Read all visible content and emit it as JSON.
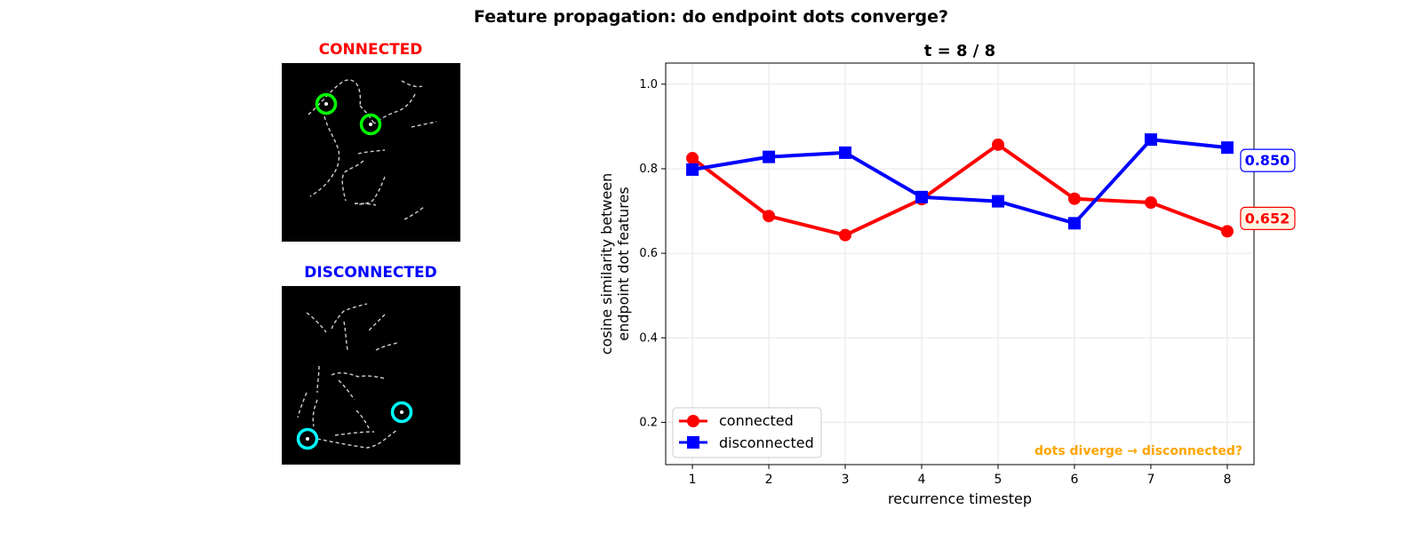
{
  "suptitle": "Feature propagation: do endpoint dots converge?",
  "panels": {
    "connected": {
      "title": "CONNECTED",
      "title_color": "#ff0000",
      "marker_color": "#00ff00"
    },
    "disconnected": {
      "title": "DISCONNECTED",
      "title_color": "#0000ff",
      "marker_color": "#00ffff"
    }
  },
  "chart_data": {
    "type": "line",
    "title": "t = 8 / 8",
    "xlabel": "recurrence timestep",
    "ylabel_lines": [
      "cosine similarity between",
      "endpoint dot features"
    ],
    "x": [
      1,
      2,
      3,
      4,
      5,
      6,
      7,
      8
    ],
    "xlim": [
      0.65,
      8.35
    ],
    "ylim": [
      0.1,
      1.05
    ],
    "xticks": [
      1,
      2,
      3,
      4,
      5,
      6,
      7,
      8
    ],
    "yticks": [
      0.2,
      0.4,
      0.6,
      0.8,
      1.0
    ],
    "ytick_labels": [
      "0.2",
      "0.4",
      "0.6",
      "0.8",
      "1.0"
    ],
    "grid": true,
    "series": [
      {
        "name": "connected",
        "color": "#ff0000",
        "marker": "circle",
        "values": [
          0.825,
          0.688,
          0.643,
          0.728,
          0.857,
          0.729,
          0.72,
          0.652
        ],
        "end_label": "0.652",
        "end_label_bg": "#fff5e6"
      },
      {
        "name": "disconnected",
        "color": "#0000ff",
        "marker": "square",
        "values": [
          0.798,
          0.828,
          0.838,
          0.733,
          0.723,
          0.671,
          0.869,
          0.85
        ],
        "end_label": "0.850",
        "end_label_bg": "#ffffff"
      }
    ],
    "legend_placement": "lower-left",
    "annotation": {
      "text": "dots diverge → disconnected?",
      "color": "#ffa500",
      "placement": "lower-right"
    }
  }
}
